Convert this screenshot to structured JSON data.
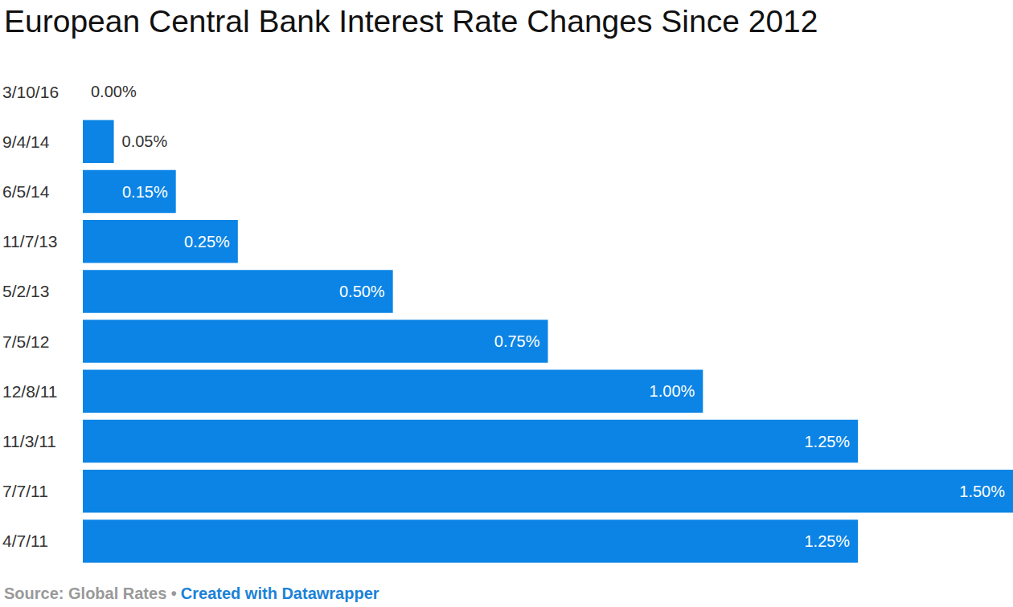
{
  "chart_data": {
    "type": "bar",
    "title": "European Central Bank Interest Rate Changes Since 2012",
    "source": "Source: Global Rates •",
    "credit": "Created with Datawrapper",
    "orientation": "horizontal",
    "categories": [
      "3/10/16",
      "9/4/14",
      "6/5/14",
      "11/7/13",
      "5/2/13",
      "7/5/12",
      "12/8/11",
      "11/3/11",
      "7/7/11",
      "4/7/11"
    ],
    "values": [
      0.0,
      0.05,
      0.15,
      0.25,
      0.5,
      0.75,
      1.0,
      1.25,
      1.5,
      1.25
    ],
    "value_labels": [
      "0.00%",
      "0.05%",
      "0.15%",
      "0.25%",
      "0.50%",
      "0.75%",
      "1.00%",
      "1.25%",
      "1.50%",
      "1.25%"
    ],
    "color": "#0b84e5",
    "xlim": [
      0,
      1.5
    ],
    "data_labels": true,
    "tick_labels": "y",
    "grid": false
  }
}
